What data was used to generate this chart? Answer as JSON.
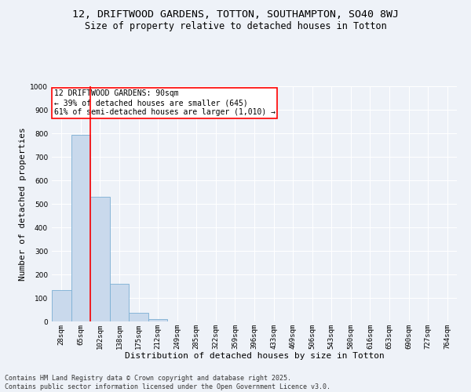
{
  "title_line1": "12, DRIFTWOOD GARDENS, TOTTON, SOUTHAMPTON, SO40 8WJ",
  "title_line2": "Size of property relative to detached houses in Totton",
  "xlabel": "Distribution of detached houses by size in Totton",
  "ylabel": "Number of detached properties",
  "bar_color": "#c9d9ec",
  "bar_edge_color": "#7bafd4",
  "categories": [
    "28sqm",
    "65sqm",
    "102sqm",
    "138sqm",
    "175sqm",
    "212sqm",
    "249sqm",
    "285sqm",
    "322sqm",
    "359sqm",
    "396sqm",
    "433sqm",
    "469sqm",
    "506sqm",
    "543sqm",
    "580sqm",
    "616sqm",
    "653sqm",
    "690sqm",
    "727sqm",
    "764sqm"
  ],
  "values": [
    135,
    795,
    530,
    160,
    37,
    10,
    0,
    0,
    0,
    0,
    0,
    0,
    0,
    0,
    0,
    0,
    0,
    0,
    0,
    0,
    0
  ],
  "property_label": "12 DRIFTWOOD GARDENS: 90sqm",
  "pct_smaller": 39,
  "num_smaller": 645,
  "pct_larger": 61,
  "num_larger": 1010,
  "vline_pos": 1.5,
  "ylim": [
    0,
    1000
  ],
  "yticks": [
    0,
    100,
    200,
    300,
    400,
    500,
    600,
    700,
    800,
    900,
    1000
  ],
  "footer_line1": "Contains HM Land Registry data © Crown copyright and database right 2025.",
  "footer_line2": "Contains public sector information licensed under the Open Government Licence v3.0.",
  "background_color": "#eef2f8",
  "grid_color": "#ffffff",
  "title_fontsize": 9.5,
  "subtitle_fontsize": 8.5,
  "axis_label_fontsize": 8,
  "tick_fontsize": 6.5,
  "annotation_fontsize": 7,
  "footer_fontsize": 6
}
